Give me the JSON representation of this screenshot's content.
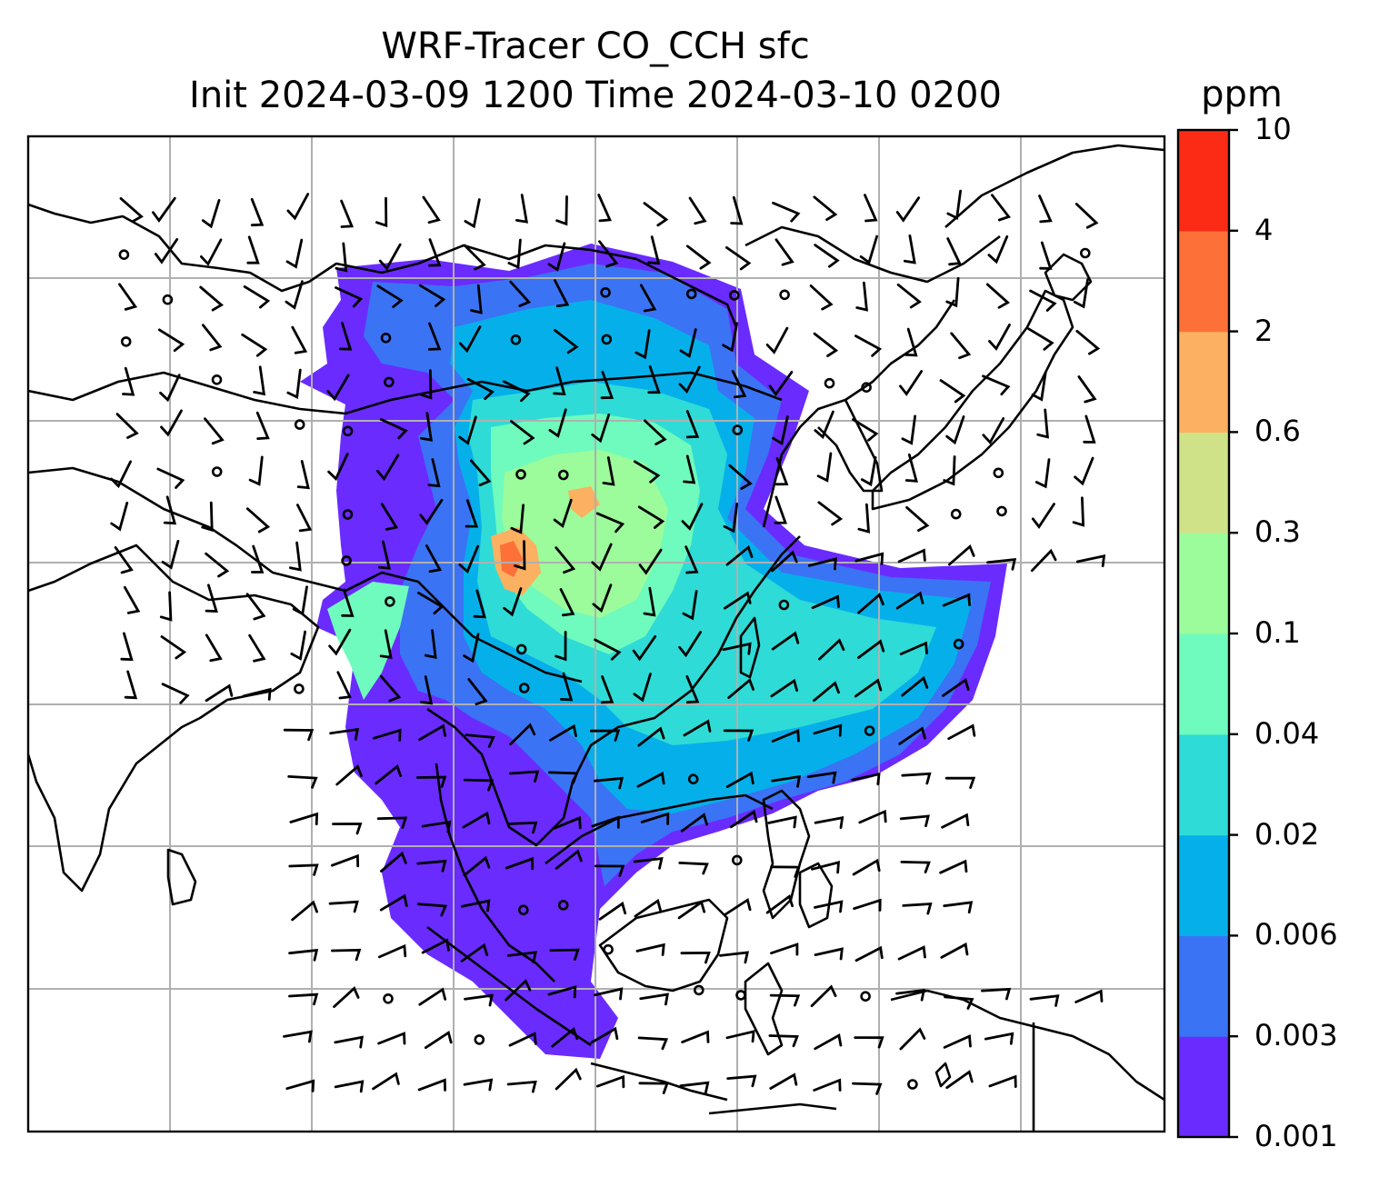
{
  "title_line1": "WRF-Tracer CO_CCH sfc",
  "title_line2": "Init 2024-03-09 1200 Time 2024-03-10 0200",
  "colorbar": {
    "unit": "ppm",
    "levels": [
      "0.001",
      "0.003",
      "0.006",
      "0.02",
      "0.04",
      "0.1",
      "0.3",
      "0.6",
      "2",
      "4",
      "10"
    ],
    "colors": [
      "#6a2bff",
      "#3b73f5",
      "#05b0ea",
      "#2fdbd6",
      "#6ffbbd",
      "#9cfb9a",
      "#cfe287",
      "#fcb061",
      "#fd7038",
      "#fb2b15"
    ]
  },
  "map": {
    "field_colors": {
      "outer": "#6a2bff",
      "second": "#3b73f5",
      "third": "#05b0ea",
      "fourth": "#2fdbd6",
      "fifth": "#6ffbbd",
      "sixth": "#9cfb9a",
      "hot": "#fcb061",
      "peak": "#fd7038"
    },
    "gridline_color": "#b0b0b0",
    "coastline_color": "#000000",
    "barb_color": "#000000"
  }
}
